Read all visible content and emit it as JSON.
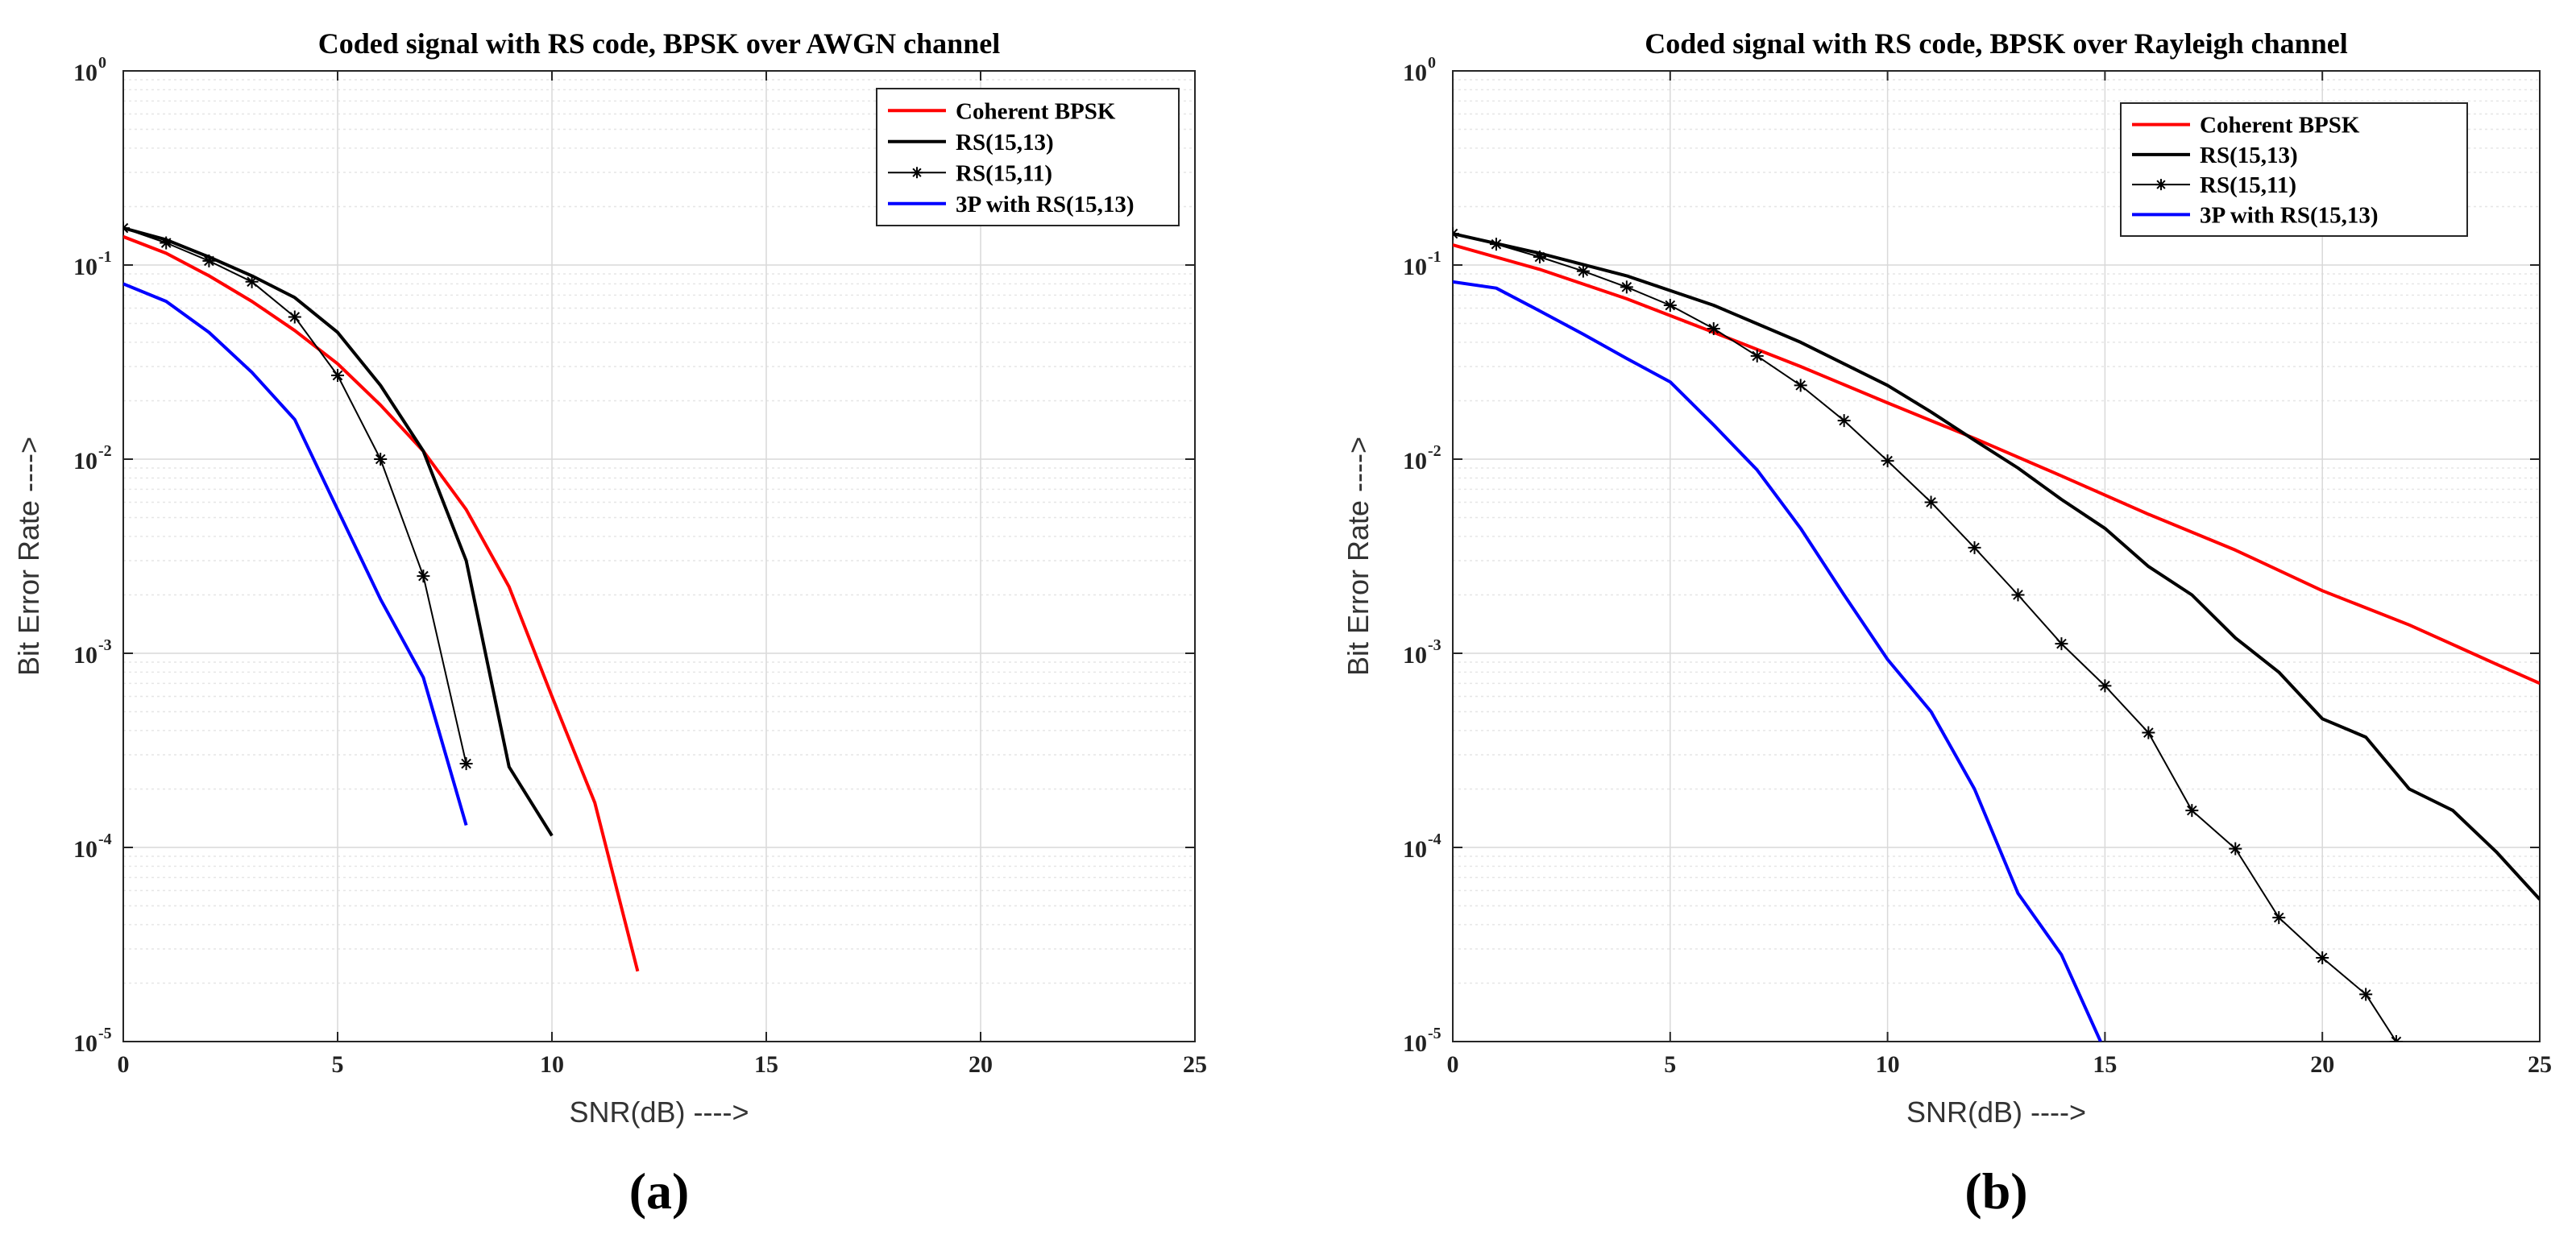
{
  "chart_data": [
    {
      "type": "line",
      "panel_label": "(a)",
      "title": "Coded signal with RS code, BPSK over AWGN channel",
      "xlabel": "SNR(dB) ---->",
      "ylabel": "Bit Error Rate ---->",
      "yscale": "log",
      "xlim": [
        0,
        25
      ],
      "ylim": [
        1e-05,
        1
      ],
      "grid": true,
      "legend_position": "top-right",
      "x_ticks": [
        "0",
        "5",
        "10",
        "15",
        "20",
        "25"
      ],
      "y_ticks": [
        {
          "base": "10",
          "exp": "0"
        },
        {
          "base": "10",
          "exp": "-1"
        },
        {
          "base": "10",
          "exp": "-2"
        },
        {
          "base": "10",
          "exp": "-3"
        },
        {
          "base": "10",
          "exp": "-4"
        },
        {
          "base": "10",
          "exp": "-5"
        }
      ],
      "series": [
        {
          "name": "Coherent BPSK",
          "color": "#ff0000",
          "marker": "none",
          "x": [
            0,
            1,
            2,
            3,
            4,
            5,
            6,
            7,
            8,
            9,
            10,
            11,
            12
          ],
          "y": [
            0.14,
            0.115,
            0.088,
            0.065,
            0.046,
            0.031,
            0.019,
            0.011,
            0.0055,
            0.0022,
            0.0006,
            0.00017,
            2.3e-05
          ]
        },
        {
          "name": "RS(15,13)",
          "color": "#000000",
          "marker": "none",
          "x": [
            0,
            1,
            2,
            3,
            4,
            5,
            6,
            7,
            8,
            9,
            10
          ],
          "y": [
            0.155,
            0.135,
            0.11,
            0.088,
            0.068,
            0.045,
            0.024,
            0.011,
            0.003,
            0.00026,
            0.000115
          ]
        },
        {
          "name": "RS(15,11)",
          "color": "#000000",
          "marker": "asterisk",
          "x": [
            0,
            1,
            2,
            3,
            4,
            5,
            6,
            7,
            8
          ],
          "y": [
            0.155,
            0.13,
            0.105,
            0.082,
            0.054,
            0.027,
            0.01,
            0.0025,
            0.00027
          ]
        },
        {
          "name": "3P with RS(15,13)",
          "color": "#0000ff",
          "marker": "none",
          "x": [
            0,
            1,
            2,
            3,
            4,
            5,
            6,
            7,
            8
          ],
          "y": [
            0.08,
            0.065,
            0.045,
            0.028,
            0.016,
            0.0055,
            0.0019,
            0.00075,
            0.00013
          ]
        }
      ]
    },
    {
      "type": "line",
      "panel_label": "(b)",
      "title": "Coded signal with RS code, BPSK over Rayleigh channel",
      "xlabel": "SNR(dB) ---->",
      "ylabel": "Bit Error Rate ---->",
      "yscale": "log",
      "xlim": [
        0,
        25
      ],
      "ylim": [
        1e-05,
        1
      ],
      "grid": true,
      "legend_position": "top-right",
      "x_ticks": [
        "0",
        "5",
        "10",
        "15",
        "20",
        "25"
      ],
      "y_ticks": [
        {
          "base": "10",
          "exp": "0"
        },
        {
          "base": "10",
          "exp": "-1"
        },
        {
          "base": "10",
          "exp": "-2"
        },
        {
          "base": "10",
          "exp": "-3"
        },
        {
          "base": "10",
          "exp": "-4"
        },
        {
          "base": "10",
          "exp": "-5"
        }
      ],
      "series": [
        {
          "name": "Coherent BPSK",
          "color": "#ff0000",
          "marker": "none",
          "x": [
            0,
            2,
            4,
            6,
            8,
            10,
            12,
            14,
            16,
            18,
            20,
            22,
            24,
            25
          ],
          "y": [
            0.127,
            0.095,
            0.067,
            0.045,
            0.03,
            0.0195,
            0.0128,
            0.0082,
            0.0052,
            0.0034,
            0.0021,
            0.0014,
            0.00088,
            0.0007
          ]
        },
        {
          "name": "RS(15,13)",
          "color": "#000000",
          "marker": "none",
          "x": [
            0,
            2,
            4,
            6,
            8,
            10,
            11,
            12,
            13,
            14,
            15,
            16,
            17,
            18,
            19,
            20,
            21,
            22,
            23,
            24,
            25
          ],
          "y": [
            0.145,
            0.115,
            0.088,
            0.062,
            0.04,
            0.024,
            0.0175,
            0.0125,
            0.009,
            0.0062,
            0.0044,
            0.0028,
            0.002,
            0.0012,
            0.0008,
            0.00046,
            0.00037,
            0.0002,
            0.000155,
            9.5e-05,
            5.4e-05
          ]
        },
        {
          "name": "RS(15,11)",
          "color": "#000000",
          "marker": "asterisk",
          "x": [
            0,
            1,
            2,
            3,
            4,
            5,
            6,
            7,
            8,
            9,
            10,
            11,
            12,
            13,
            14,
            15,
            16,
            17,
            18,
            19,
            20,
            21,
            21.7
          ],
          "y": [
            0.145,
            0.128,
            0.11,
            0.093,
            0.077,
            0.062,
            0.047,
            0.034,
            0.024,
            0.0158,
            0.0098,
            0.006,
            0.0035,
            0.002,
            0.00112,
            0.00068,
            0.00039,
            0.000155,
            9.85e-05,
            4.35e-05,
            2.7e-05,
            1.75e-05,
            1e-05
          ]
        },
        {
          "name": "3P with RS(15,13)",
          "color": "#0000ff",
          "marker": "none",
          "x": [
            0,
            1,
            2,
            3,
            4,
            5,
            6,
            7,
            8,
            9,
            10,
            11,
            12,
            13,
            14,
            14.9
          ],
          "y": [
            0.082,
            0.076,
            0.058,
            0.044,
            0.033,
            0.025,
            0.015,
            0.0088,
            0.0044,
            0.002,
            0.00093,
            0.0005,
            0.0002,
            5.8e-05,
            2.8e-05,
            1e-05
          ]
        }
      ]
    }
  ]
}
